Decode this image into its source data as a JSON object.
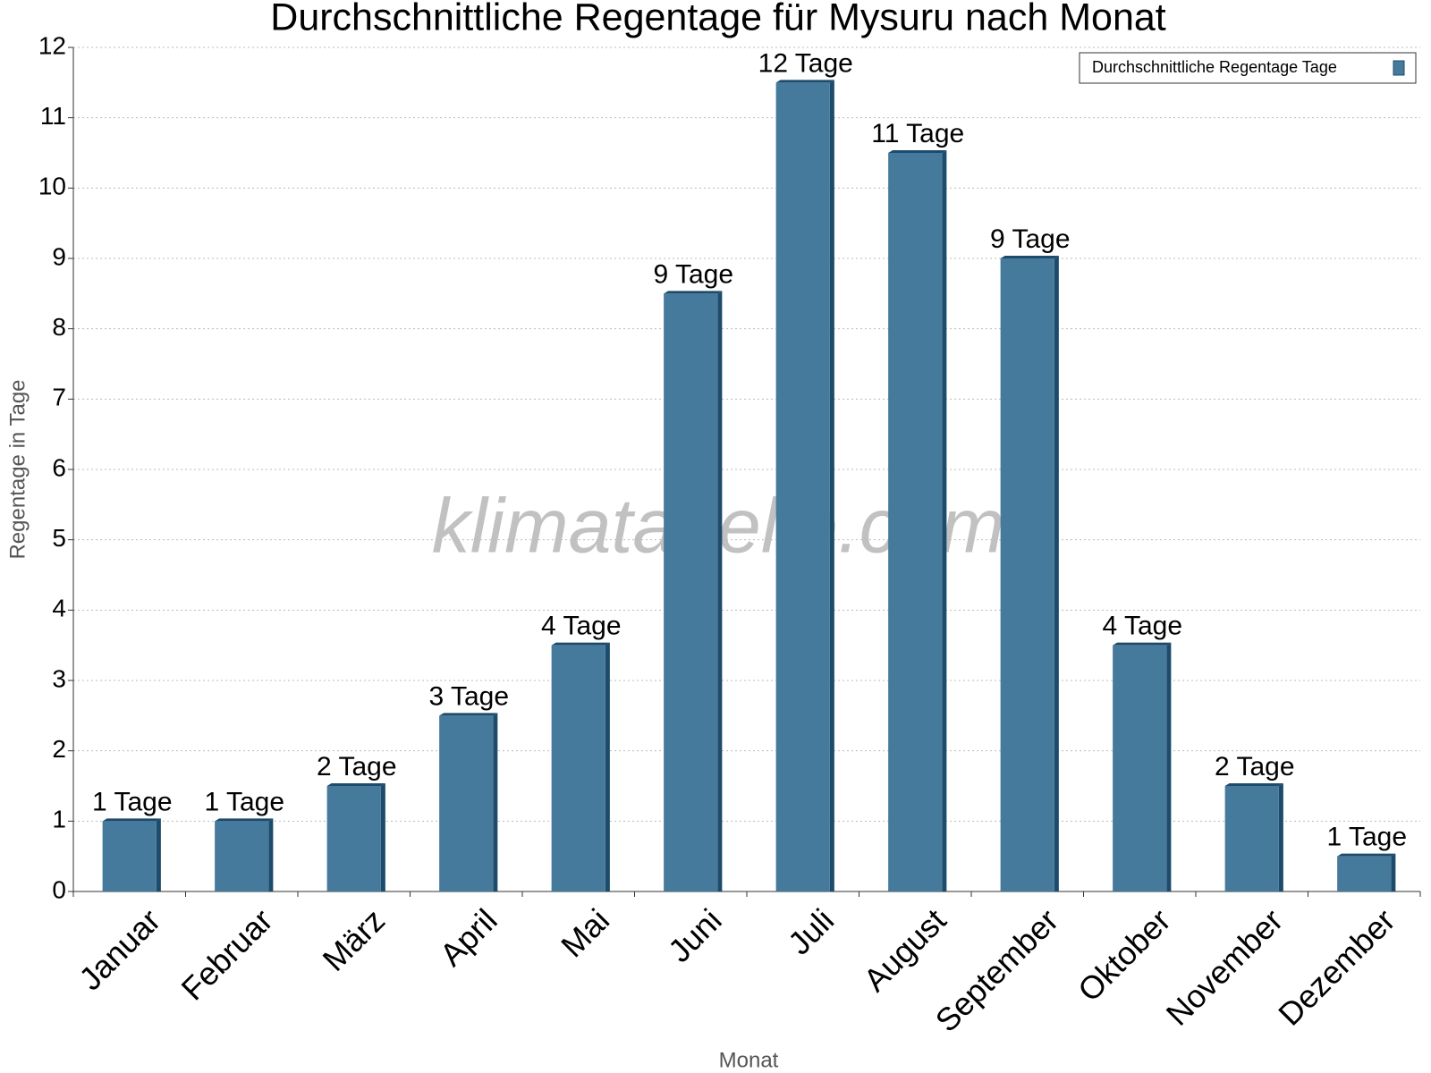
{
  "chart_data": {
    "type": "bar",
    "title": "Durchschnittliche Regentage für Mysuru nach Monat",
    "x_label": "Monat",
    "y_label": "Regentage in Tage",
    "watermark": "klimatabelle.com",
    "categories": [
      "Januar",
      "Februar",
      "März",
      "April",
      "Mai",
      "Juni",
      "Juli",
      "August",
      "September",
      "Oktober",
      "November",
      "Dezember"
    ],
    "series": [
      {
        "name": "Durchschnittliche Regentage Tage",
        "color": "#467a9c",
        "values": [
          1,
          1,
          1.5,
          2.5,
          3.5,
          8.5,
          11.5,
          10.5,
          9,
          3.5,
          1.5,
          0.5
        ],
        "value_labels": [
          "1 Tage",
          "1 Tage",
          "2 Tage",
          "3 Tage",
          "4 Tage",
          "9 Tage",
          "12 Tage",
          "11 Tage",
          "9 Tage",
          "4 Tage",
          "2 Tage",
          "1 Tage"
        ]
      }
    ],
    "ylim": [
      0,
      12
    ],
    "yticks": [
      0,
      1,
      2,
      3,
      4,
      5,
      6,
      7,
      8,
      9,
      10,
      11,
      12
    ],
    "grid": true,
    "legend": "top-right"
  }
}
